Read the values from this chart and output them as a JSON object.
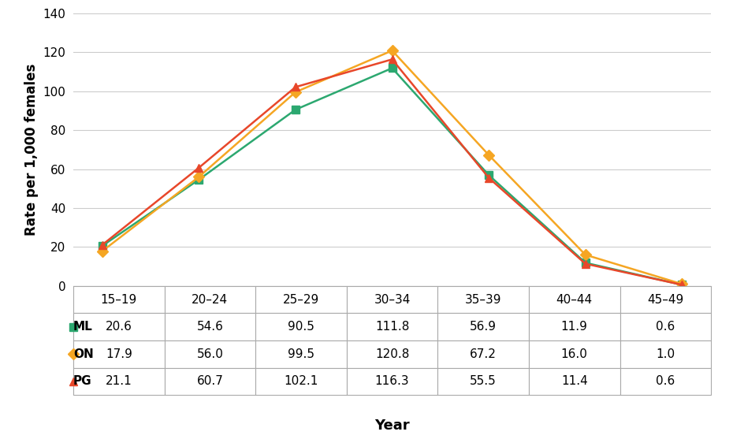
{
  "categories": [
    "15–19",
    "20–24",
    "25–29",
    "30–34",
    "35–39",
    "40–44",
    "45–49"
  ],
  "series": [
    {
      "label": "ML",
      "values": [
        20.6,
        54.6,
        90.5,
        111.8,
        56.9,
        11.9,
        0.6
      ],
      "color": "#2ca870",
      "marker": "s",
      "linewidth": 1.8
    },
    {
      "label": "ON",
      "values": [
        17.9,
        56.0,
        99.5,
        120.8,
        67.2,
        16.0,
        1.0
      ],
      "color": "#f5a623",
      "marker": "D",
      "linewidth": 1.8
    },
    {
      "label": "PG",
      "values": [
        21.1,
        60.7,
        102.1,
        116.3,
        55.5,
        11.4,
        0.6
      ],
      "color": "#e8472a",
      "marker": "^",
      "linewidth": 1.8
    }
  ],
  "table_values": [
    [
      "20.6",
      "54.6",
      "90.5",
      "111.8",
      "56.9",
      "11.9",
      "0.6"
    ],
    [
      "17.9",
      "56.0",
      "99.5",
      "120.8",
      "67.2",
      "16.0",
      "1.0"
    ],
    [
      "21.1",
      "60.7",
      "102.1",
      "116.3",
      "55.5",
      "11.4",
      "0.6"
    ]
  ],
  "ylabel": "Rate per 1,000 females",
  "xlabel": "Year",
  "ylim": [
    0,
    140
  ],
  "yticks": [
    0,
    20,
    40,
    60,
    80,
    100,
    120,
    140
  ],
  "background_color": "#ffffff",
  "grid_color": "#cccccc",
  "marker_size": 7,
  "table_border_color": "#aaaaaa"
}
